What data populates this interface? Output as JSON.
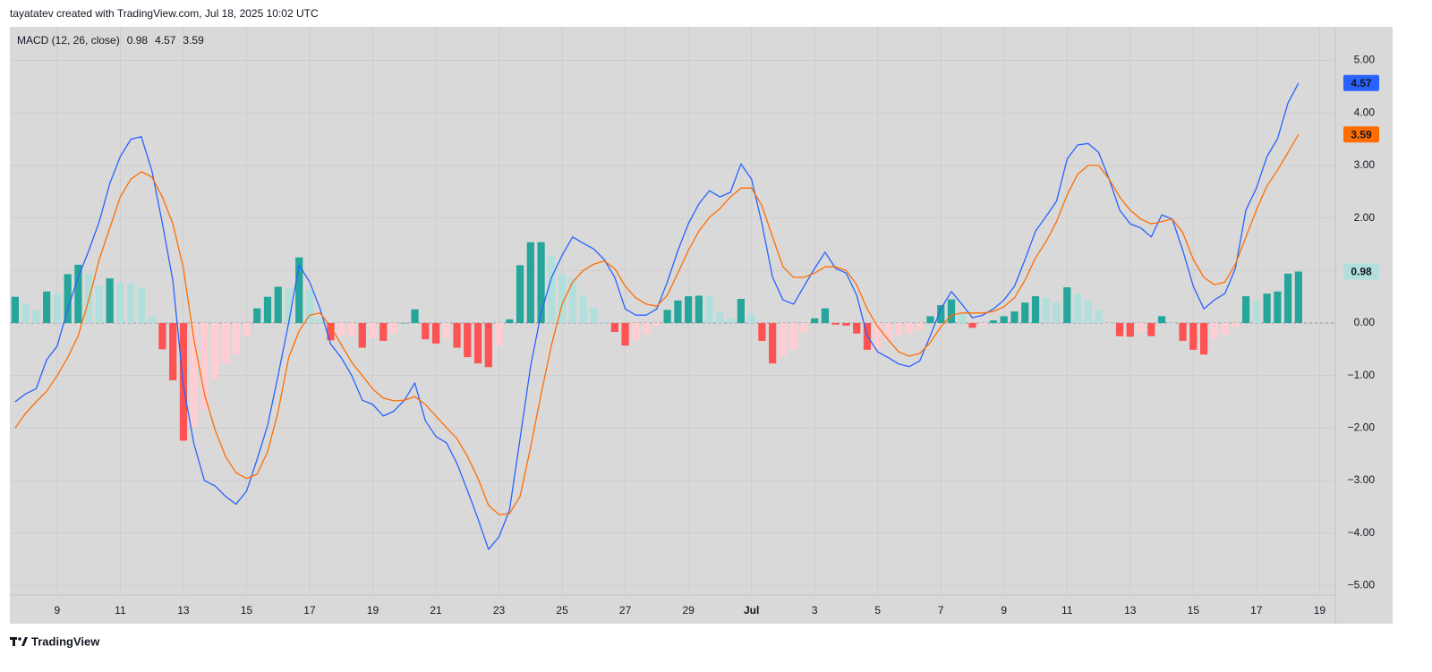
{
  "header": "tayatatev created with TradingView.com, Jul 18, 2025 10:02 UTC",
  "brand": "TradingView",
  "chart_data": {
    "type": "macd",
    "title": "MACD (12, 26, close)",
    "categories": [
      null,
      null,
      null,
      null,
      "9",
      null,
      null,
      null,
      null,
      null,
      "11",
      null,
      null,
      null,
      null,
      null,
      "13",
      null,
      null,
      null,
      null,
      null,
      "15",
      null,
      null,
      null,
      null,
      null,
      "17",
      null,
      null,
      null,
      null,
      null,
      "19",
      null,
      null,
      null,
      null,
      null,
      "21",
      null,
      null,
      null,
      null,
      null,
      "23",
      null,
      null,
      null,
      null,
      null,
      "25",
      null,
      null,
      null,
      null,
      null,
      "27",
      null,
      null,
      null,
      null,
      null,
      "29",
      null,
      null,
      null,
      null,
      null,
      "Jul",
      null,
      null,
      null,
      null,
      null,
      "3",
      null,
      null,
      null,
      null,
      null,
      "5",
      null,
      null,
      null,
      null,
      null,
      "7",
      null,
      null,
      null,
      null,
      null,
      "9",
      null,
      null,
      null,
      null,
      null,
      "11",
      null,
      null,
      null,
      null,
      null,
      "13",
      null,
      null,
      null,
      null,
      null,
      "15",
      null,
      null,
      null,
      null,
      null,
      "17",
      null,
      null,
      null,
      null,
      null,
      "19",
      null
    ],
    "series": [
      {
        "type": "histogram",
        "color": "#b2dfdb",
        "colors": [
          "#26a69a",
          "#b2dfdb",
          "#ff5252",
          "#ffcdd2"
        ],
        "values": [
          0.5,
          0.37,
          0.25,
          0.6,
          0.56,
          0.93,
          1.11,
          0.94,
          0.72,
          0.85,
          0.77,
          0.76,
          0.67,
          0.12,
          -0.5,
          -1.09,
          -2.24,
          -1.98,
          -1.65,
          -1.07,
          -0.76,
          -0.6,
          -0.24,
          0.28,
          0.5,
          0.69,
          0.66,
          1.25,
          0.63,
          0.08,
          -0.33,
          -0.25,
          -0.25,
          -0.47,
          -0.29,
          -0.34,
          -0.2,
          0,
          0.26,
          -0.31,
          -0.39,
          -0.29,
          -0.47,
          -0.65,
          -0.77,
          -0.84,
          -0.42,
          0.07,
          1.1,
          1.54,
          1.54,
          1.28,
          0.93,
          0.86,
          0.52,
          0.29,
          0.03,
          -0.17,
          -0.43,
          -0.33,
          -0.21,
          -0.05,
          0.25,
          0.43,
          0.51,
          0.52,
          0.51,
          0.22,
          0.09,
          0.46,
          0.17,
          -0.34,
          -0.77,
          -0.63,
          -0.51,
          -0.17,
          0.09,
          0.28,
          -0.03,
          -0.05,
          -0.2,
          -0.51,
          -0.48,
          -0.34,
          -0.23,
          -0.2,
          -0.14,
          0.13,
          0.34,
          0.45,
          0.17,
          -0.09,
          -0.04,
          0.05,
          0.13,
          0.22,
          0.39,
          0.51,
          0.48,
          0.39,
          0.68,
          0.56,
          0.42,
          0.25,
          0,
          -0.25,
          -0.26,
          -0.17,
          -0.25,
          0.13,
          0,
          -0.34,
          -0.51,
          -0.6,
          -0.29,
          -0.22,
          -0.08,
          0.51,
          0.42,
          0.56,
          0.6,
          0.94,
          0.98,
          null,
          null,
          null
        ]
      },
      {
        "type": "line",
        "color": "#2962ff",
        "values": [
          -1.5,
          -1.35,
          -1.25,
          -0.7,
          -0.44,
          0.27,
          0.87,
          1.38,
          1.93,
          2.66,
          3.17,
          3.5,
          3.55,
          2.9,
          1.9,
          0.8,
          -1.2,
          -2.3,
          -3.0,
          -3.1,
          -3.3,
          -3.45,
          -3.2,
          -2.6,
          -1.95,
          -1.0,
          0,
          1.1,
          0.78,
          0.27,
          -0.4,
          -0.66,
          -1.0,
          -1.47,
          -1.55,
          -1.77,
          -1.68,
          -1.47,
          -1.14,
          -1.86,
          -2.16,
          -2.28,
          -2.67,
          -3.19,
          -3.73,
          -4.31,
          -4.07,
          -3.56,
          -2.2,
          -0.83,
          0.19,
          0.87,
          1.29,
          1.64,
          1.52,
          1.41,
          1.21,
          0.87,
          0.27,
          0.15,
          0.15,
          0.27,
          0.78,
          1.38,
          1.89,
          2.27,
          2.52,
          2.4,
          2.49,
          3.03,
          2.74,
          1.89,
          0.87,
          0.44,
          0.36,
          0.7,
          1.04,
          1.35,
          1.04,
          0.95,
          0.53,
          -0.24,
          -0.55,
          -0.66,
          -0.78,
          -0.83,
          -0.72,
          -0.24,
          0.27,
          0.6,
          0.36,
          0.1,
          0.15,
          0.27,
          0.44,
          0.7,
          1.21,
          1.75,
          2.03,
          2.32,
          3.12,
          3.39,
          3.42,
          3.25,
          2.74,
          2.15,
          1.89,
          1.81,
          1.64,
          2.06,
          1.98,
          1.38,
          0.7,
          0.27,
          0.44,
          0.56,
          1.04,
          2.15,
          2.57,
          3.17,
          3.51,
          4.19,
          4.57,
          null,
          null,
          null
        ]
      },
      {
        "type": "line",
        "color": "#ff6d00",
        "values": [
          -2.0,
          -1.72,
          -1.5,
          -1.3,
          -1.0,
          -0.66,
          -0.24,
          0.44,
          1.21,
          1.81,
          2.4,
          2.74,
          2.88,
          2.78,
          2.4,
          1.89,
          1.04,
          -0.32,
          -1.35,
          -2.03,
          -2.54,
          -2.85,
          -2.96,
          -2.88,
          -2.45,
          -1.69,
          -0.66,
          -0.15,
          0.15,
          0.19,
          -0.07,
          -0.41,
          -0.75,
          -1.0,
          -1.26,
          -1.43,
          -1.48,
          -1.47,
          -1.4,
          -1.55,
          -1.77,
          -1.99,
          -2.2,
          -2.54,
          -2.96,
          -3.47,
          -3.65,
          -3.63,
          -3.3,
          -2.37,
          -1.35,
          -0.41,
          0.36,
          0.78,
          1.0,
          1.12,
          1.18,
          1.04,
          0.7,
          0.48,
          0.36,
          0.32,
          0.53,
          0.95,
          1.38,
          1.75,
          2.01,
          2.18,
          2.4,
          2.57,
          2.57,
          2.23,
          1.64,
          1.07,
          0.87,
          0.87,
          0.95,
          1.07,
          1.07,
          1.0,
          0.73,
          0.27,
          -0.07,
          -0.32,
          -0.55,
          -0.63,
          -0.58,
          -0.37,
          -0.07,
          0.15,
          0.19,
          0.19,
          0.19,
          0.22,
          0.31,
          0.48,
          0.82,
          1.24,
          1.55,
          1.93,
          2.44,
          2.83,
          3.0,
          3.0,
          2.74,
          2.4,
          2.15,
          1.98,
          1.89,
          1.93,
          1.98,
          1.72,
          1.21,
          0.87,
          0.73,
          0.78,
          1.12,
          1.64,
          2.15,
          2.61,
          2.91,
          3.25,
          3.59,
          null,
          null,
          null
        ]
      }
    ],
    "ylim": [
      -5.18,
      5.64
    ],
    "yticks": [
      {
        "value": 5,
        "label": "5.00"
      },
      {
        "value": 4,
        "label": "4.00"
      },
      {
        "value": 3,
        "label": "3.00"
      },
      {
        "value": 2,
        "label": "2.00"
      },
      {
        "value": 1,
        "label": "1.00"
      },
      {
        "value": 0,
        "label": "0.00"
      },
      {
        "value": -1,
        "label": "−1.00"
      },
      {
        "value": -2,
        "label": "−2.00"
      },
      {
        "value": -3,
        "label": "−3.00"
      },
      {
        "value": -4,
        "label": "−4.00"
      },
      {
        "value": -5,
        "label": "−5.00"
      }
    ],
    "grid": true,
    "zero_line": true
  }
}
